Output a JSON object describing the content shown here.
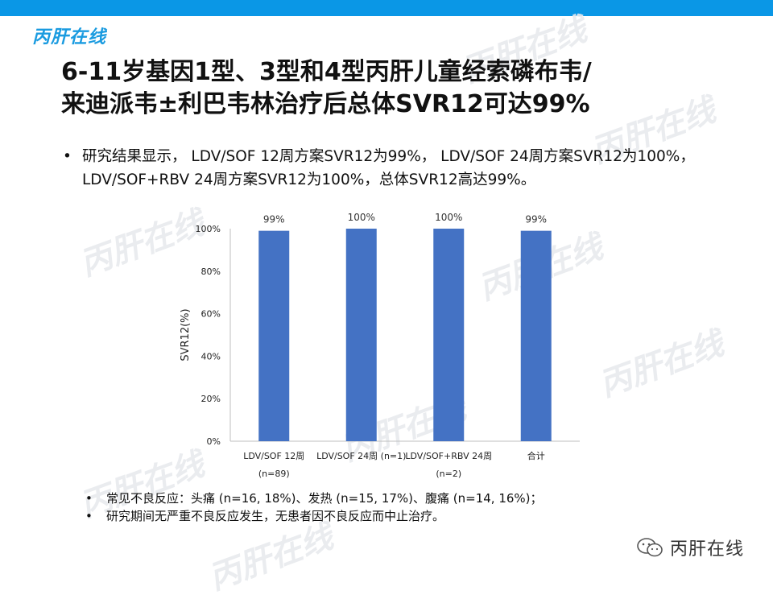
{
  "header": {
    "logo_text": "丙肝在线",
    "accent_color": "#0a97e6"
  },
  "slide": {
    "title_line1": "6-11岁基因1型、3型和4型丙肝儿童经索磷布韦/",
    "title_line2": "来迪派韦±利巴韦林治疗后总体SVR12可达99%",
    "bullet_marker": "•",
    "bullet_text": "研究结果显示， LDV/SOF 12周方案SVR12为99%， LDV/SOF 24周方案SVR12为100%， LDV/SOF+RBV 24周方案SVR12为100%，总体SVR12高达99%。"
  },
  "chart_data": {
    "type": "bar",
    "categories": [
      "LDV/SOF 12周 (n=89)",
      "LDV/SOF 24周 (n=1)",
      "LDV/SOF+RBV 24周 (n=2)",
      "合计"
    ],
    "category_lines": [
      [
        "LDV/SOF 12周",
        "(n=89)"
      ],
      [
        "LDV/SOF 24周 (n=1)",
        ""
      ],
      [
        "LDV/SOF+RBV 24周",
        "(n=2)"
      ],
      [
        "合计",
        ""
      ]
    ],
    "values": [
      99,
      100,
      100,
      99
    ],
    "data_labels": [
      "99%",
      "100%",
      "100%",
      "99%"
    ],
    "ylabel": "SVR12(%)",
    "ylim": [
      0,
      100
    ],
    "yticks": [
      "0%",
      "20%",
      "40%",
      "60%",
      "80%",
      "100%"
    ],
    "bar_color": "#4472c4",
    "grid": false
  },
  "notes": [
    {
      "marker": "•",
      "text": "常见不良反应：头痛 (n=16, 18%)、发热 (n=15, 17%)、腹痛 (n=14, 16%)；"
    },
    {
      "marker": "•",
      "text": "研究期间无严重不良反应发生，无患者因不良反应而中止治疗。"
    }
  ],
  "footer": {
    "brand_text": "丙肝在线",
    "brand_icon": "wechat-icon"
  },
  "watermark_text": "丙肝在线"
}
